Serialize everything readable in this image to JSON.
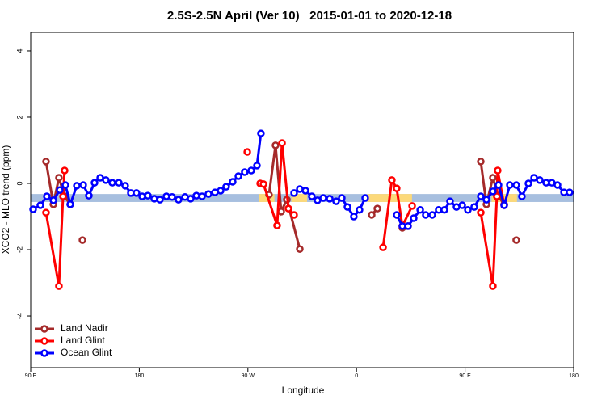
{
  "chart_data": {
    "type": "line",
    "title": "2.5S-2.5N April (Ver 10)   2015-01-01 to 2020-12-18",
    "xlabel": "Longitude",
    "ylabel": "XCO2 - MLO trend (ppm)",
    "xlim": [
      90,
      540
    ],
    "xticks": [
      {
        "value": 90,
        "label": "90 E"
      },
      180,
      {
        "value": 270,
        "label": "90 W"
      },
      {
        "value": 360,
        "label": "0"
      },
      {
        "value": 450,
        "label": "90 E"
      },
      {
        "value": 540,
        "label": "180"
      }
    ],
    "ylim": [
      -5.56,
      4.56
    ],
    "yticks": [
      -4,
      -2,
      0,
      2,
      4
    ],
    "legend": "bottom-left",
    "bands": [
      {
        "color": "#a7bfdf",
        "xlim": [
          90,
          540
        ],
        "ylim": [
          -0.56,
          -0.32
        ]
      },
      {
        "color": "#fcd97a",
        "xlim": [
          279,
          292
        ],
        "ylim": [
          -0.56,
          -0.32
        ]
      },
      {
        "color": "#fcd97a",
        "xlim": [
          306,
          319
        ],
        "ylim": [
          -0.56,
          -0.32
        ]
      },
      {
        "color": "#fcd97a",
        "xlim": [
          369,
          406
        ],
        "ylim": [
          -0.56,
          -0.32
        ]
      },
      {
        "color": "#fcd97a",
        "xlim": [
          472,
          493
        ],
        "ylim": [
          -0.56,
          -0.32
        ]
      }
    ],
    "series": [
      {
        "name": "Land Nadir",
        "color": "#a52a2a",
        "x": [
          102.7,
          108.8,
          113.4,
          118.1,
          122.8,
          null,
          132.9,
          null,
          287.5,
          292.9,
          297.6,
          302.3,
          313.0,
          null,
          372.6,
          377.3,
          null,
          398.0,
          402.7,
          null,
          463.0,
          467.7,
          473.0,
          477.7,
          482.4,
          null,
          492.4
        ],
        "values": [
          0.66,
          -0.63,
          0.17,
          -0.39,
          -0.63,
          null,
          -1.71,
          null,
          -0.34,
          1.15,
          -0.85,
          -0.49,
          -1.98,
          null,
          -0.95,
          -0.76,
          null,
          -1.34,
          -1.29,
          null,
          0.66,
          -0.63,
          0.17,
          -0.39,
          -0.63,
          null,
          -1.71
        ]
      },
      {
        "name": "Land Glint",
        "color": "#ff0000",
        "x": [
          102.7,
          113.4,
          116.8,
          118.1,
          null,
          269.5,
          null,
          280.2,
          282.9,
          294.2,
          298.3,
          303.6,
          308.3,
          null,
          382.0,
          389.3,
          393.3,
          398.0,
          406.1,
          null,
          463.0,
          473.0,
          476.3,
          477.0,
          482.4
        ],
        "values": [
          -0.88,
          -3.1,
          -0.39,
          0.39,
          null,
          0.95,
          null,
          0.0,
          -0.02,
          -1.27,
          1.22,
          -0.76,
          -0.95,
          null,
          -1.93,
          0.1,
          -0.15,
          -1.29,
          -0.68,
          null,
          -0.88,
          -3.1,
          -0.39,
          0.39,
          -0.66
        ]
      },
      {
        "name": "Ocean Glint",
        "color": "#0000ff",
        "x": [
          92.0,
          98.0,
          103.4,
          108.8,
          114.1,
          118.8,
          122.8,
          128.2,
          133.5,
          138.2,
          142.9,
          147.6,
          152.3,
          157.6,
          163.0,
          168.3,
          173.0,
          177.7,
          182.4,
          187.1,
          192.4,
          197.1,
          202.5,
          207.2,
          212.5,
          217.9,
          222.6,
          227.3,
          232.0,
          237.3,
          242.7,
          247.4,
          252.0,
          257.4,
          262.1,
          267.4,
          272.8,
          277.5,
          280.8,
          null,
          308.3,
          313.0,
          317.7,
          323.0,
          327.7,
          332.4,
          337.8,
          343.1,
          347.8,
          352.5,
          357.8,
          362.5,
          367.2,
          null,
          393.3,
          398.0,
          402.7,
          407.4,
          412.8,
          417.4,
          422.8,
          428.1,
          432.8,
          437.5,
          442.9,
          447.6,
          452.3,
          457.6,
          463.0,
          467.7,
          473.0,
          477.7,
          482.4,
          487.1,
          492.4,
          497.1,
          502.5,
          507.2,
          511.9,
          517.2,
          521.9,
          526.6,
          532.0,
          536.6
        ],
        "values": [
          -0.78,
          -0.66,
          -0.39,
          -0.51,
          -0.2,
          -0.05,
          -0.63,
          -0.07,
          -0.05,
          -0.37,
          0.02,
          0.17,
          0.1,
          0.02,
          0.02,
          -0.07,
          -0.29,
          -0.29,
          -0.39,
          -0.37,
          -0.46,
          -0.49,
          -0.39,
          -0.41,
          -0.49,
          -0.41,
          -0.46,
          -0.37,
          -0.39,
          -0.32,
          -0.27,
          -0.22,
          -0.1,
          0.05,
          0.22,
          0.34,
          0.39,
          0.54,
          1.51,
          null,
          -0.29,
          -0.17,
          -0.22,
          -0.39,
          -0.51,
          -0.44,
          -0.46,
          -0.54,
          -0.44,
          -0.71,
          -1.0,
          -0.8,
          -0.44,
          null,
          -0.95,
          -1.29,
          -1.29,
          -1.05,
          -0.8,
          -0.95,
          -0.95,
          -0.8,
          -0.8,
          -0.54,
          -0.71,
          -0.66,
          -0.8,
          -0.71,
          -0.39,
          -0.49,
          -0.24,
          -0.05,
          -0.66,
          -0.05,
          -0.05,
          -0.39,
          0.0,
          0.17,
          0.1,
          0.02,
          0.02,
          -0.05,
          -0.27,
          -0.27
        ]
      }
    ]
  }
}
